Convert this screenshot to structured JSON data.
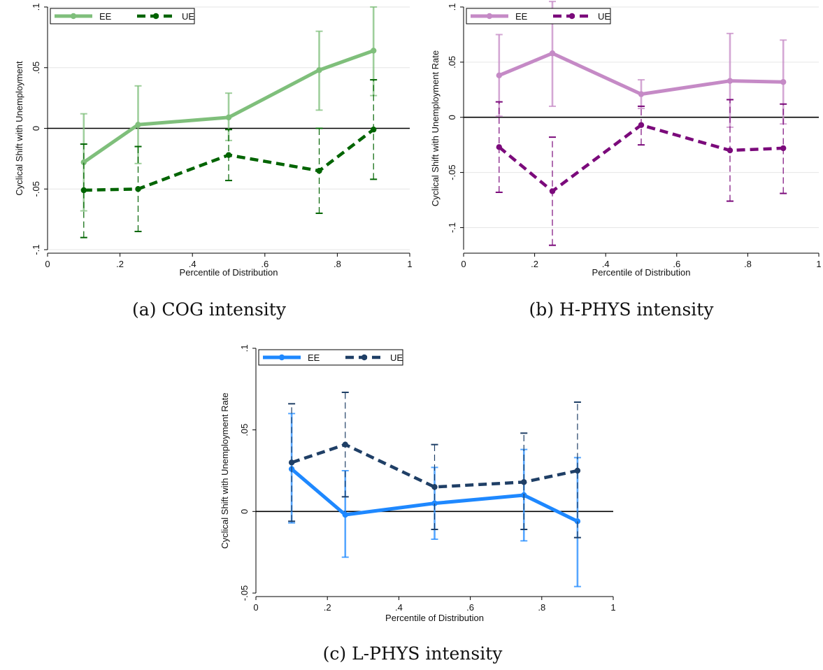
{
  "captions": [
    "(a) COG intensity",
    "(b) H-PHYS intensity",
    "(c) L-PHYS intensity"
  ],
  "chart_data": [
    {
      "type": "line",
      "ylabel": "Cyclical Shift with Unemployment",
      "xlabel": "Percentile of Distribution",
      "xlim": [
        0,
        1
      ],
      "ylim": [
        -0.1,
        0.1
      ],
      "xticks": [
        0,
        0.2,
        0.4,
        0.6,
        0.8,
        1
      ],
      "xtick_labels": [
        "0",
        ".2",
        ".4",
        ".6",
        ".8",
        "1"
      ],
      "yticks": [
        -0.1,
        -0.05,
        0,
        0.05,
        0.1
      ],
      "ytick_labels": [
        "-.1",
        "-.05",
        "0",
        ".05",
        ".1"
      ],
      "grid": true,
      "zero_line": true,
      "legend_position": "top-left",
      "series": [
        {
          "name": "EE",
          "color": "#7fbf7b",
          "style": "solid",
          "x": [
            0.1,
            0.25,
            0.5,
            0.75,
            0.9
          ],
          "y": [
            -0.028,
            0.003,
            0.009,
            0.048,
            0.064
          ],
          "ci_low": [
            -0.068,
            -0.029,
            -0.01,
            0.015,
            0.027
          ],
          "ci_high": [
            0.012,
            0.035,
            0.029,
            0.08,
            0.1
          ]
        },
        {
          "name": "UE",
          "color": "#006400",
          "style": "dashed",
          "x": [
            0.1,
            0.25,
            0.5,
            0.75,
            0.9
          ],
          "y": [
            -0.051,
            -0.05,
            -0.022,
            -0.035,
            -0.001
          ],
          "ci_low": [
            -0.09,
            -0.085,
            -0.043,
            -0.07,
            -0.042
          ],
          "ci_high": [
            -0.013,
            -0.015,
            -0.001,
            0.0,
            0.04
          ]
        }
      ]
    },
    {
      "type": "line",
      "ylabel": "Cyclical Shift with Unemployment  Rate",
      "xlabel": "Percentile of Distribution",
      "xlim": [
        0,
        1
      ],
      "ylim": [
        -0.12,
        0.1
      ],
      "xticks": [
        0,
        0.2,
        0.4,
        0.6,
        0.8,
        1
      ],
      "xtick_labels": [
        "0",
        ".2",
        ".4",
        ".6",
        ".8",
        "1"
      ],
      "yticks": [
        -0.1,
        -0.05,
        0,
        0.05,
        0.1
      ],
      "ytick_labels": [
        "-.1",
        "-.05",
        "0",
        ".05",
        ".1"
      ],
      "grid": true,
      "zero_line": true,
      "legend_position": "top-left",
      "series": [
        {
          "name": "EE",
          "color": "#c58ac6",
          "style": "solid",
          "x": [
            0.1,
            0.25,
            0.5,
            0.75,
            0.9
          ],
          "y": [
            0.038,
            0.058,
            0.021,
            0.033,
            0.032
          ],
          "ci_low": [
            0.001,
            0.01,
            0.008,
            -0.009,
            -0.006
          ],
          "ci_high": [
            0.075,
            0.105,
            0.034,
            0.076,
            0.07
          ]
        },
        {
          "name": "UE",
          "color": "#7b0a7b",
          "style": "dashed",
          "x": [
            0.1,
            0.25,
            0.5,
            0.75,
            0.9
          ],
          "y": [
            -0.027,
            -0.067,
            -0.007,
            -0.03,
            -0.028
          ],
          "ci_low": [
            -0.068,
            -0.116,
            -0.025,
            -0.076,
            -0.069
          ],
          "ci_high": [
            0.014,
            -0.018,
            0.01,
            0.016,
            0.012
          ]
        }
      ]
    },
    {
      "type": "line",
      "ylabel": "Cyclical Shift with Unemployment  Rate",
      "xlabel": "Percentile of Distribution",
      "xlim": [
        0,
        1
      ],
      "ylim": [
        -0.05,
        0.1
      ],
      "xticks": [
        0,
        0.2,
        0.4,
        0.6,
        0.8,
        1
      ],
      "xtick_labels": [
        "0",
        ".2",
        ".4",
        ".6",
        ".8",
        "1"
      ],
      "yticks": [
        -0.05,
        0,
        0.05,
        0.1
      ],
      "ytick_labels": [
        "-.05",
        "0",
        ".05",
        ".1"
      ],
      "grid": false,
      "zero_line": true,
      "legend_position": "top-left",
      "series": [
        {
          "name": "EE",
          "color": "#1e88ff",
          "style": "solid",
          "x": [
            0.1,
            0.25,
            0.5,
            0.75,
            0.9
          ],
          "y": [
            0.026,
            -0.002,
            0.005,
            0.01,
            -0.006
          ],
          "ci_low": [
            -0.007,
            -0.028,
            -0.017,
            -0.018,
            -0.046
          ],
          "ci_high": [
            0.06,
            0.025,
            0.027,
            0.038,
            0.033
          ]
        },
        {
          "name": "UE",
          "color": "#1f3f66",
          "style": "dashed",
          "x": [
            0.1,
            0.25,
            0.5,
            0.75,
            0.9
          ],
          "y": [
            0.03,
            0.041,
            0.015,
            0.018,
            0.025
          ],
          "ci_low": [
            -0.006,
            0.009,
            -0.011,
            -0.011,
            -0.016
          ],
          "ci_high": [
            0.066,
            0.073,
            0.041,
            0.048,
            0.067
          ]
        }
      ]
    }
  ]
}
